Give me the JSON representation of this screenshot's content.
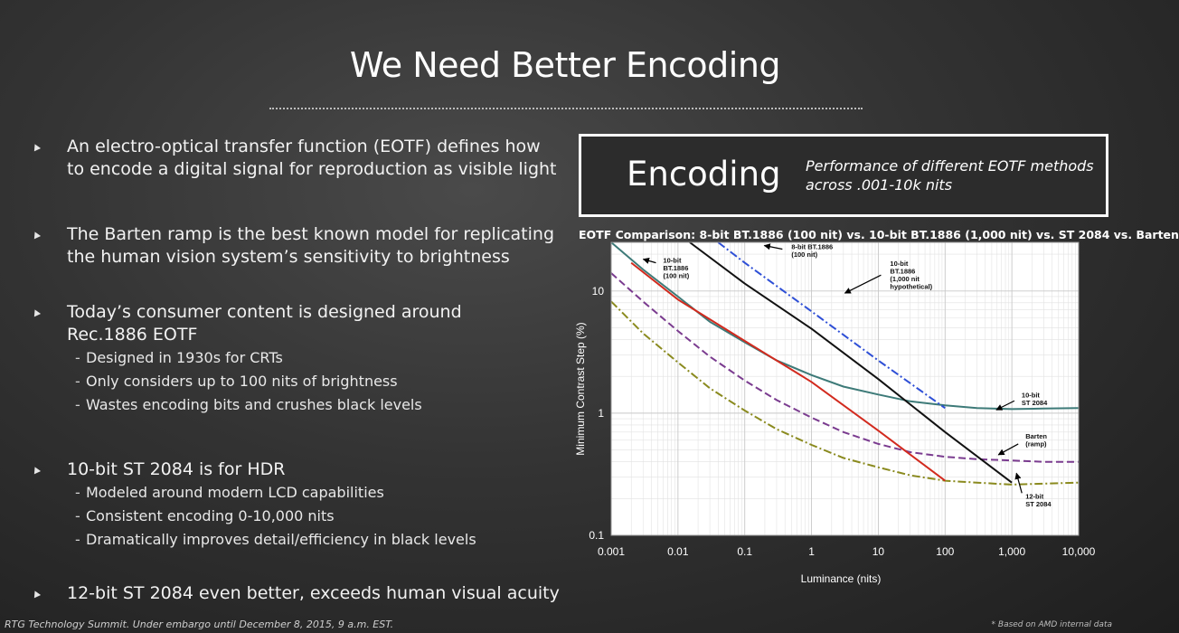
{
  "slide": {
    "title": "We Need Better Encoding",
    "footer_left": "RTG Technology Summit. Under embargo until December 8, 2015, 9 a.m. EST.",
    "footer_right": "* Based on AMD internal data"
  },
  "bullets": [
    {
      "lines": [
        "An electro-optical transfer function (EOTF) defines how",
        "to encode a digital signal for reproduction as visible light"
      ],
      "subs": []
    },
    {
      "lines": [
        "The Barten ramp is the best known model for replicating",
        "the human vision system’s sensitivity to brightness"
      ],
      "subs": []
    },
    {
      "lines": [
        "Today’s consumer content is designed around",
        "Rec.1886 EOTF"
      ],
      "subs": [
        "Designed in 1930s for CRTs",
        "Only considers up to 100 nits of brightness",
        "Wastes encoding bits and crushes black levels"
      ]
    },
    {
      "lines": [
        "10-bit ST 2084 is for HDR"
      ],
      "subs": [
        "Modeled around modern LCD capabilities",
        "Consistent encoding 0-10,000 nits",
        "Dramatically improves detail/efficiency in black levels"
      ]
    },
    {
      "lines": [
        "12-bit ST 2084  even better, exceeds human visual acuity"
      ],
      "subs": []
    }
  ],
  "panel": {
    "heading": "Encoding",
    "description_line1": "Performance of different EOTF methods",
    "description_line2": "across .001-10k nits"
  },
  "chart_data": {
    "type": "line",
    "title": "EOTF Comparison: 8-bit BT.1886 (100 nit) vs. 10-bit BT.1886 (1,000 nit) vs. ST 2084 vs. Barten",
    "xlabel": "Luminance (nits)",
    "ylabel": "Minimum Contrast Step (%)",
    "x_scale": "log",
    "y_scale": "log",
    "xlim": [
      0.001,
      10000
    ],
    "ylim": [
      0.1,
      25
    ],
    "grid": true,
    "x_ticks": [
      0.001,
      0.01,
      0.1,
      1,
      10,
      100,
      1000,
      10000
    ],
    "x_tick_labels": [
      "0.001",
      "0.01",
      "0.1",
      "1",
      "10",
      "100",
      "1,000",
      "10,000"
    ],
    "y_ticks": [
      0.1,
      1,
      10
    ],
    "y_tick_labels": [
      "0.1",
      "1",
      "10"
    ],
    "series": [
      {
        "name": "10-bit ST 2084",
        "color": "#3d7a78",
        "style": "solid",
        "x": [
          0.001,
          0.003,
          0.01,
          0.03,
          0.1,
          0.3,
          1,
          3,
          10,
          30,
          100,
          300,
          1000,
          3000,
          10000
        ],
        "y": [
          25,
          15,
          9,
          5.6,
          3.8,
          2.7,
          2.05,
          1.65,
          1.42,
          1.25,
          1.16,
          1.1,
          1.08,
          1.09,
          1.1
        ]
      },
      {
        "name": "Barten (ramp)",
        "color": "#7a3b8f",
        "style": "dashed",
        "x": [
          0.001,
          0.003,
          0.01,
          0.03,
          0.1,
          0.3,
          1,
          3,
          10,
          30,
          100,
          300,
          1000,
          3000,
          10000
        ],
        "y": [
          14,
          8.2,
          4.7,
          2.9,
          1.85,
          1.28,
          0.92,
          0.7,
          0.56,
          0.48,
          0.44,
          0.42,
          0.41,
          0.4,
          0.4
        ]
      },
      {
        "name": "12-bit ST 2084",
        "color": "#8a8a1e",
        "style": "dashdot",
        "x": [
          0.001,
          0.003,
          0.01,
          0.03,
          0.1,
          0.3,
          1,
          3,
          10,
          30,
          100,
          300,
          1000,
          3000,
          10000
        ],
        "y": [
          8.2,
          4.5,
          2.6,
          1.6,
          1.05,
          0.74,
          0.55,
          0.43,
          0.36,
          0.31,
          0.28,
          0.27,
          0.26,
          0.265,
          0.27
        ]
      },
      {
        "name": "10-bit BT.1886 (100 nit)",
        "color": "#d22a1e",
        "style": "solid",
        "x": [
          0.002,
          0.01,
          0.1,
          1,
          10,
          100
        ],
        "y": [
          17,
          8.5,
          3.9,
          1.8,
          0.72,
          0.28
        ]
      },
      {
        "name": "8-bit BT.1886 (100 nit)",
        "color": "#2e4fd6",
        "style": "dashdot",
        "x": [
          0.04,
          0.1,
          1,
          10,
          100
        ],
        "y": [
          25,
          17,
          6.8,
          2.7,
          1.1
        ]
      },
      {
        "name": "10-bit BT.1886 (1,000 nit hypothetical)",
        "color": "#111111",
        "style": "solid",
        "x": [
          0.015,
          0.1,
          1,
          10,
          100,
          1000
        ],
        "y": [
          25,
          11.5,
          4.9,
          1.9,
          0.7,
          0.27
        ]
      }
    ],
    "annotations": [
      {
        "label": "10-bit BT.1886 (100 nit)",
        "lines": [
          "10-bit",
          "BT.1886",
          "(100 nit)"
        ],
        "x": 0.006,
        "y": 17
      },
      {
        "label": "8-bit BT.1886 (100 nit)",
        "lines": [
          "8-bit BT.1886",
          "(100 nit)"
        ],
        "x": 0.5,
        "y": 22
      },
      {
        "label": "10-bit BT.1886 (1,000 nit hypothetical)",
        "lines": [
          "10-bit",
          "BT.1886",
          "(1,000 nit",
          "hypothetical)"
        ],
        "x": 15,
        "y": 16
      },
      {
        "label": "10-bit ST 2084",
        "lines": [
          "10-bit",
          "ST 2084"
        ],
        "x": 1400,
        "y": 1.35
      },
      {
        "label": "Barten (ramp)",
        "lines": [
          "Barten",
          "(ramp)"
        ],
        "x": 1600,
        "y": 0.62
      },
      {
        "label": "12-bit ST 2084",
        "lines": [
          "12-bit",
          "ST 2084"
        ],
        "x": 1600,
        "y": 0.2
      }
    ]
  }
}
